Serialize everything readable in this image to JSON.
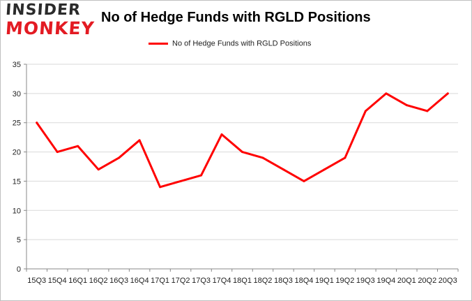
{
  "brand": {
    "line1": "INSIDER",
    "line2": "MONKEY"
  },
  "colors": {
    "series": "#ff0000",
    "grid": "#d9d9d9",
    "axis": "#888888"
  },
  "chart_data": {
    "type": "line",
    "title": "No of Hedge Funds with RGLD Positions",
    "legend_position": "top",
    "grid": true,
    "categories": [
      "15Q3",
      "15Q4",
      "16Q1",
      "16Q2",
      "16Q3",
      "16Q4",
      "17Q1",
      "17Q2",
      "17Q3",
      "17Q4",
      "18Q1",
      "18Q2",
      "18Q3",
      "18Q4",
      "19Q1",
      "19Q2",
      "19Q3",
      "19Q4",
      "20Q1",
      "20Q2",
      "20Q3"
    ],
    "series": [
      {
        "name": "No of Hedge Funds with RGLD Positions",
        "values": [
          25,
          20,
          21,
          17,
          19,
          22,
          14,
          15,
          16,
          23,
          20,
          19,
          17,
          15,
          17,
          19,
          27,
          30,
          28,
          27,
          30
        ]
      }
    ],
    "ylim": [
      0,
      35
    ],
    "yticks": [
      0,
      5,
      10,
      15,
      20,
      25,
      30,
      35
    ]
  }
}
